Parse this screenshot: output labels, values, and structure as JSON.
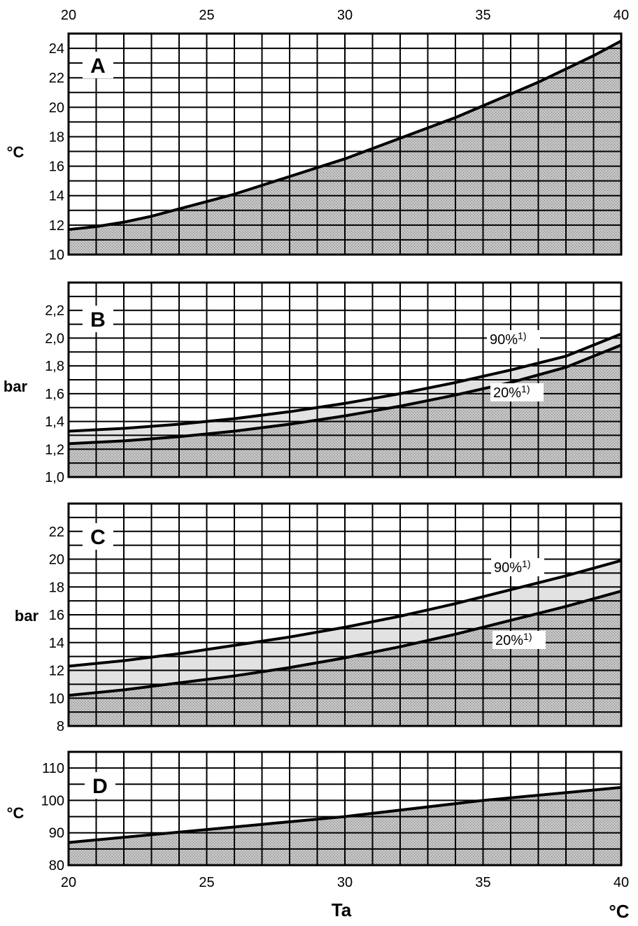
{
  "chart_data": {
    "type": "line",
    "shared_x": {
      "label": "Ta",
      "unit": "°C",
      "range": [
        20,
        40
      ],
      "ticks": [
        20,
        25,
        30,
        35,
        40
      ]
    },
    "colors": {
      "fill": "#b9b9b9",
      "line": "#000000",
      "grid": "#000000"
    },
    "panels": [
      {
        "id": "A",
        "unit": "°C",
        "ylim": [
          10,
          25
        ],
        "ytick_labels": [
          "10",
          "12",
          "14",
          "16",
          "18",
          "20",
          "22",
          "24"
        ],
        "ytick_values": [
          10,
          12,
          14,
          16,
          18,
          20,
          22,
          24
        ],
        "series": [
          {
            "name": "A",
            "x": [
              20,
              21,
              22,
              23,
              24,
              25,
              26,
              27,
              28,
              29,
              30,
              31,
              32,
              33,
              34,
              35,
              36,
              37,
              38,
              39,
              40
            ],
            "values": [
              11.7,
              11.9,
              12.2,
              12.6,
              13.1,
              13.6,
              14.1,
              14.7,
              15.3,
              15.9,
              16.5,
              17.2,
              17.9,
              18.6,
              19.3,
              20.1,
              20.9,
              21.7,
              22.6,
              23.5,
              24.5
            ]
          }
        ]
      },
      {
        "id": "B",
        "unit": "bar",
        "ylim": [
          1.0,
          2.4
        ],
        "ytick_labels": [
          "1,0",
          "1,2",
          "1,4",
          "1,6",
          "1,8",
          "2,0",
          "2,2"
        ],
        "ytick_values": [
          1.0,
          1.2,
          1.4,
          1.6,
          1.8,
          2.0,
          2.2
        ],
        "series": [
          {
            "name": "90%",
            "annotation": "90%",
            "footnote": "1)",
            "x": [
              20,
              22,
              24,
              26,
              28,
              30,
              32,
              34,
              36,
              38,
              40
            ],
            "values": [
              1.33,
              1.35,
              1.38,
              1.42,
              1.47,
              1.53,
              1.6,
              1.68,
              1.77,
              1.87,
              2.03
            ]
          },
          {
            "name": "20%",
            "annotation": "20%",
            "footnote": "1)",
            "x": [
              20,
              22,
              24,
              26,
              28,
              30,
              32,
              34,
              36,
              38,
              40
            ],
            "values": [
              1.24,
              1.26,
              1.29,
              1.33,
              1.38,
              1.44,
              1.51,
              1.59,
              1.68,
              1.79,
              1.95
            ]
          }
        ]
      },
      {
        "id": "C",
        "unit": "bar",
        "ylim": [
          8,
          24
        ],
        "ytick_labels": [
          "8",
          "10",
          "12",
          "14",
          "16",
          "18",
          "20",
          "22"
        ],
        "ytick_values": [
          8,
          10,
          12,
          14,
          16,
          18,
          20,
          22
        ],
        "series": [
          {
            "name": "90%",
            "annotation": "90%",
            "footnote": "1)",
            "x": [
              20,
              22,
              24,
              26,
              28,
              30,
              32,
              34,
              36,
              38,
              40
            ],
            "values": [
              12.3,
              12.7,
              13.2,
              13.8,
              14.4,
              15.1,
              15.9,
              16.8,
              17.8,
              18.8,
              19.9
            ]
          },
          {
            "name": "20%",
            "annotation": "20%",
            "footnote": "1)",
            "x": [
              20,
              22,
              24,
              26,
              28,
              30,
              32,
              34,
              36,
              38,
              40
            ],
            "values": [
              10.2,
              10.6,
              11.1,
              11.6,
              12.2,
              12.9,
              13.7,
              14.6,
              15.6,
              16.6,
              17.7
            ]
          }
        ]
      },
      {
        "id": "D",
        "unit": "°C",
        "ylim": [
          80,
          115
        ],
        "ytick_labels": [
          "80",
          "90",
          "100",
          "110"
        ],
        "ytick_values": [
          80,
          90,
          100,
          110
        ],
        "series": [
          {
            "name": "D",
            "x": [
              20,
              25,
              30,
              35,
              40
            ],
            "values": [
              87,
              91,
              95,
              100,
              104
            ]
          }
        ]
      }
    ]
  }
}
